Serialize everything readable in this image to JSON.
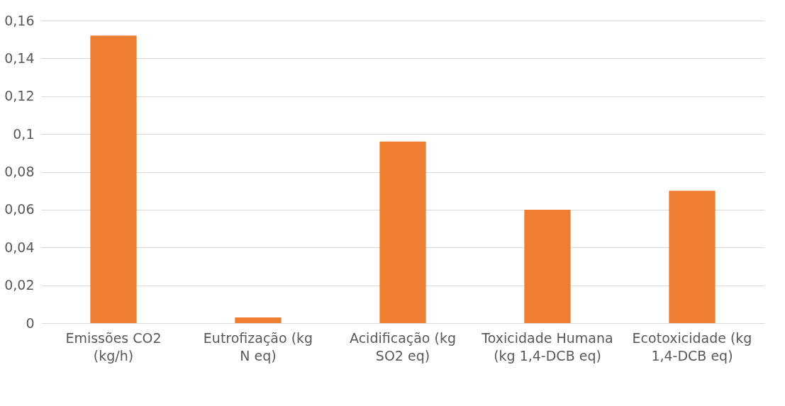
{
  "chart_data": {
    "type": "bar",
    "categories": [
      "Emissões CO2 (kg/h)",
      "Eutrofização (kg N eq)",
      "Acidificação (kg SO2 eq)",
      "Toxicidade Humana (kg 1,4-DCB eq)",
      "Ecotoxicidade (kg 1,4-DCB eq)"
    ],
    "values": [
      0.152,
      0.003,
      0.096,
      0.06,
      0.07
    ],
    "color": "#ed7d31",
    "ylim": [
      0,
      0.16
    ],
    "yticks": [
      {
        "value": 0,
        "label": "0"
      },
      {
        "value": 0.02,
        "label": "0,02"
      },
      {
        "value": 0.04,
        "label": "0,04"
      },
      {
        "value": 0.06,
        "label": "0,06"
      },
      {
        "value": 0.08,
        "label": "0,08"
      },
      {
        "value": 0.1,
        "label": "0,1"
      },
      {
        "value": 0.12,
        "label": "0,12"
      },
      {
        "value": 0.14,
        "label": "0,14"
      },
      {
        "value": 0.16,
        "label": "0,16"
      }
    ],
    "grid": "y"
  }
}
